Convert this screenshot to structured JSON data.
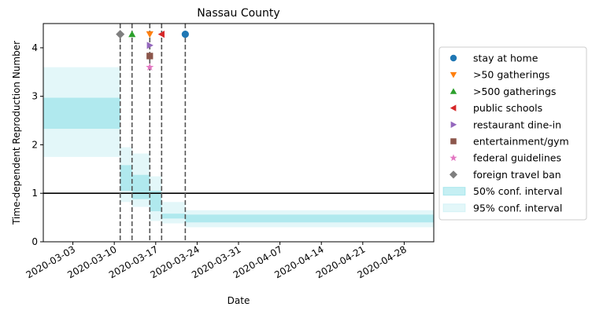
{
  "chart_data": {
    "type": "line",
    "title": "Nassau County",
    "xlabel": "Date",
    "ylabel": "Time-dependent Reproduction Number",
    "xlim": [
      "2020-02-27",
      "2020-05-03"
    ],
    "ylim": [
      0,
      4.5
    ],
    "x_ticks": [
      "2020-03-03",
      "2020-03-10",
      "2020-03-17",
      "2020-03-24",
      "2020-03-31",
      "2020-04-07",
      "2020-04-14",
      "2020-04-21",
      "2020-04-28"
    ],
    "y_ticks": [
      0,
      1,
      2,
      3,
      4
    ],
    "reference_line": {
      "y": 1,
      "color": "#000000"
    },
    "colors": {
      "band": "#17becf",
      "event_line": "#555555"
    },
    "ci_segments": [
      {
        "start": "2020-02-27",
        "end": "2020-03-11",
        "ci50": [
          2.33,
          2.97
        ],
        "ci95": [
          1.75,
          3.6
        ]
      },
      {
        "start": "2020-03-11",
        "end": "2020-03-13",
        "ci50": [
          1.05,
          1.58
        ],
        "ci95": [
          0.82,
          1.95
        ]
      },
      {
        "start": "2020-03-13",
        "end": "2020-03-16",
        "ci50": [
          0.88,
          1.38
        ],
        "ci95": [
          0.72,
          1.82
        ]
      },
      {
        "start": "2020-03-16",
        "end": "2020-03-18",
        "ci50": [
          0.63,
          1.05
        ],
        "ci95": [
          0.43,
          1.35
        ]
      },
      {
        "start": "2020-03-18",
        "end": "2020-03-22",
        "ci50": [
          0.48,
          0.58
        ],
        "ci95": [
          0.38,
          0.82
        ]
      },
      {
        "start": "2020-03-22",
        "end": "2020-05-03",
        "ci50": [
          0.4,
          0.56
        ],
        "ci95": [
          0.3,
          0.65
        ]
      }
    ],
    "event_lines": [
      "2020-03-11",
      "2020-03-13",
      "2020-03-16",
      "2020-03-18",
      "2020-03-22"
    ],
    "events": [
      {
        "label": "stay at home",
        "date": "2020-03-22",
        "y": 4.28,
        "marker": "circle",
        "color": "#1f77b4"
      },
      {
        "label": ">50 gatherings",
        "date": "2020-03-16",
        "y": 4.28,
        "marker": "triangle-down",
        "color": "#ff7f0e"
      },
      {
        "label": ">500 gatherings",
        "date": "2020-03-13",
        "y": 4.28,
        "marker": "triangle-up",
        "color": "#2ca02c"
      },
      {
        "label": "public schools",
        "date": "2020-03-18",
        "y": 4.28,
        "marker": "triangle-left",
        "color": "#d62728"
      },
      {
        "label": "restaurant dine-in",
        "date": "2020-03-16",
        "y": 4.05,
        "marker": "triangle-right",
        "color": "#9467bd"
      },
      {
        "label": "entertainment/gym",
        "date": "2020-03-16",
        "y": 3.83,
        "marker": "square",
        "color": "#8c564b"
      },
      {
        "label": "federal guidelines",
        "date": "2020-03-16",
        "y": 3.6,
        "marker": "star",
        "color": "#e377c2"
      },
      {
        "label": "foreign travel ban",
        "date": "2020-03-11",
        "y": 4.28,
        "marker": "diamond",
        "color": "#7f7f7f"
      }
    ],
    "legend": {
      "placement": "center-right-outside",
      "band_entries": [
        {
          "label": "50% conf. interval",
          "color": "#17becf",
          "opacity": 0.25
        },
        {
          "label": "95% conf. interval",
          "color": "#17becf",
          "opacity": 0.12
        }
      ]
    }
  }
}
